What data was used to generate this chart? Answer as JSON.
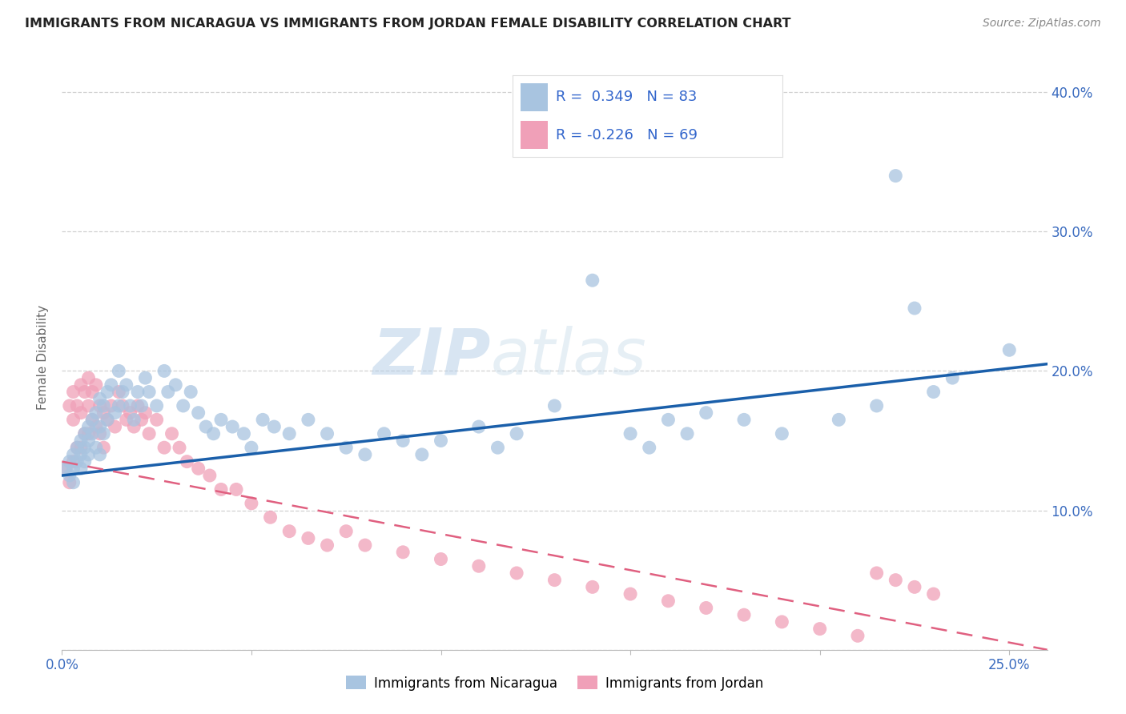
{
  "title": "IMMIGRANTS FROM NICARAGUA VS IMMIGRANTS FROM JORDAN FEMALE DISABILITY CORRELATION CHART",
  "source": "Source: ZipAtlas.com",
  "ylabel": "Female Disability",
  "xlim": [
    0.0,
    0.26
  ],
  "ylim": [
    0.0,
    0.42
  ],
  "x_tick_positions": [
    0.0,
    0.05,
    0.1,
    0.15,
    0.2,
    0.25
  ],
  "x_tick_labels": [
    "0.0%",
    "",
    "",
    "",
    "",
    "25.0%"
  ],
  "y_tick_positions": [
    0.0,
    0.1,
    0.2,
    0.3,
    0.4
  ],
  "y_tick_labels": [
    "",
    "10.0%",
    "20.0%",
    "30.0%",
    "40.0%"
  ],
  "blue_color": "#a8c4e0",
  "pink_color": "#f0a0b8",
  "blue_line_color": "#1a5faa",
  "pink_line_color": "#e06080",
  "watermark_zip": "ZIP",
  "watermark_atlas": "atlas",
  "nic_line_x0": 0.0,
  "nic_line_y0": 0.125,
  "nic_line_x1": 0.26,
  "nic_line_y1": 0.205,
  "jor_line_x0": 0.0,
  "jor_line_y0": 0.135,
  "jor_line_x1": 0.26,
  "jor_line_y1": 0.0,
  "nic_scatter_x": [
    0.001,
    0.002,
    0.002,
    0.003,
    0.003,
    0.003,
    0.004,
    0.004,
    0.005,
    0.005,
    0.005,
    0.006,
    0.006,
    0.006,
    0.007,
    0.007,
    0.007,
    0.008,
    0.008,
    0.009,
    0.009,
    0.01,
    0.01,
    0.01,
    0.011,
    0.011,
    0.012,
    0.012,
    0.013,
    0.014,
    0.015,
    0.015,
    0.016,
    0.017,
    0.018,
    0.019,
    0.02,
    0.021,
    0.022,
    0.023,
    0.025,
    0.027,
    0.028,
    0.03,
    0.032,
    0.034,
    0.036,
    0.038,
    0.04,
    0.042,
    0.045,
    0.048,
    0.05,
    0.053,
    0.056,
    0.06,
    0.065,
    0.07,
    0.075,
    0.08,
    0.085,
    0.09,
    0.095,
    0.1,
    0.11,
    0.115,
    0.12,
    0.13,
    0.14,
    0.15,
    0.155,
    0.16,
    0.165,
    0.17,
    0.18,
    0.19,
    0.205,
    0.215,
    0.22,
    0.225,
    0.23,
    0.235,
    0.25
  ],
  "nic_scatter_y": [
    0.13,
    0.135,
    0.125,
    0.14,
    0.13,
    0.12,
    0.145,
    0.135,
    0.15,
    0.14,
    0.13,
    0.155,
    0.145,
    0.135,
    0.16,
    0.15,
    0.14,
    0.165,
    0.155,
    0.17,
    0.145,
    0.18,
    0.16,
    0.14,
    0.175,
    0.155,
    0.185,
    0.165,
    0.19,
    0.17,
    0.2,
    0.175,
    0.185,
    0.19,
    0.175,
    0.165,
    0.185,
    0.175,
    0.195,
    0.185,
    0.175,
    0.2,
    0.185,
    0.19,
    0.175,
    0.185,
    0.17,
    0.16,
    0.155,
    0.165,
    0.16,
    0.155,
    0.145,
    0.165,
    0.16,
    0.155,
    0.165,
    0.155,
    0.145,
    0.14,
    0.155,
    0.15,
    0.14,
    0.15,
    0.16,
    0.145,
    0.155,
    0.175,
    0.265,
    0.155,
    0.145,
    0.165,
    0.155,
    0.17,
    0.165,
    0.155,
    0.165,
    0.175,
    0.34,
    0.245,
    0.185,
    0.195,
    0.215
  ],
  "jor_scatter_x": [
    0.001,
    0.002,
    0.002,
    0.003,
    0.003,
    0.003,
    0.004,
    0.004,
    0.005,
    0.005,
    0.005,
    0.006,
    0.006,
    0.007,
    0.007,
    0.007,
    0.008,
    0.008,
    0.009,
    0.009,
    0.01,
    0.01,
    0.011,
    0.011,
    0.012,
    0.013,
    0.014,
    0.015,
    0.016,
    0.017,
    0.018,
    0.019,
    0.02,
    0.021,
    0.022,
    0.023,
    0.025,
    0.027,
    0.029,
    0.031,
    0.033,
    0.036,
    0.039,
    0.042,
    0.046,
    0.05,
    0.055,
    0.06,
    0.065,
    0.07,
    0.075,
    0.08,
    0.09,
    0.1,
    0.11,
    0.12,
    0.13,
    0.14,
    0.15,
    0.16,
    0.17,
    0.18,
    0.19,
    0.2,
    0.21,
    0.215,
    0.22,
    0.225,
    0.23
  ],
  "jor_scatter_y": [
    0.13,
    0.175,
    0.12,
    0.185,
    0.165,
    0.135,
    0.175,
    0.145,
    0.19,
    0.17,
    0.145,
    0.185,
    0.155,
    0.195,
    0.175,
    0.155,
    0.185,
    0.165,
    0.19,
    0.16,
    0.175,
    0.155,
    0.17,
    0.145,
    0.165,
    0.175,
    0.16,
    0.185,
    0.175,
    0.165,
    0.17,
    0.16,
    0.175,
    0.165,
    0.17,
    0.155,
    0.165,
    0.145,
    0.155,
    0.145,
    0.135,
    0.13,
    0.125,
    0.115,
    0.115,
    0.105,
    0.095,
    0.085,
    0.08,
    0.075,
    0.085,
    0.075,
    0.07,
    0.065,
    0.06,
    0.055,
    0.05,
    0.045,
    0.04,
    0.035,
    0.03,
    0.025,
    0.02,
    0.015,
    0.01,
    0.055,
    0.05,
    0.045,
    0.04
  ]
}
